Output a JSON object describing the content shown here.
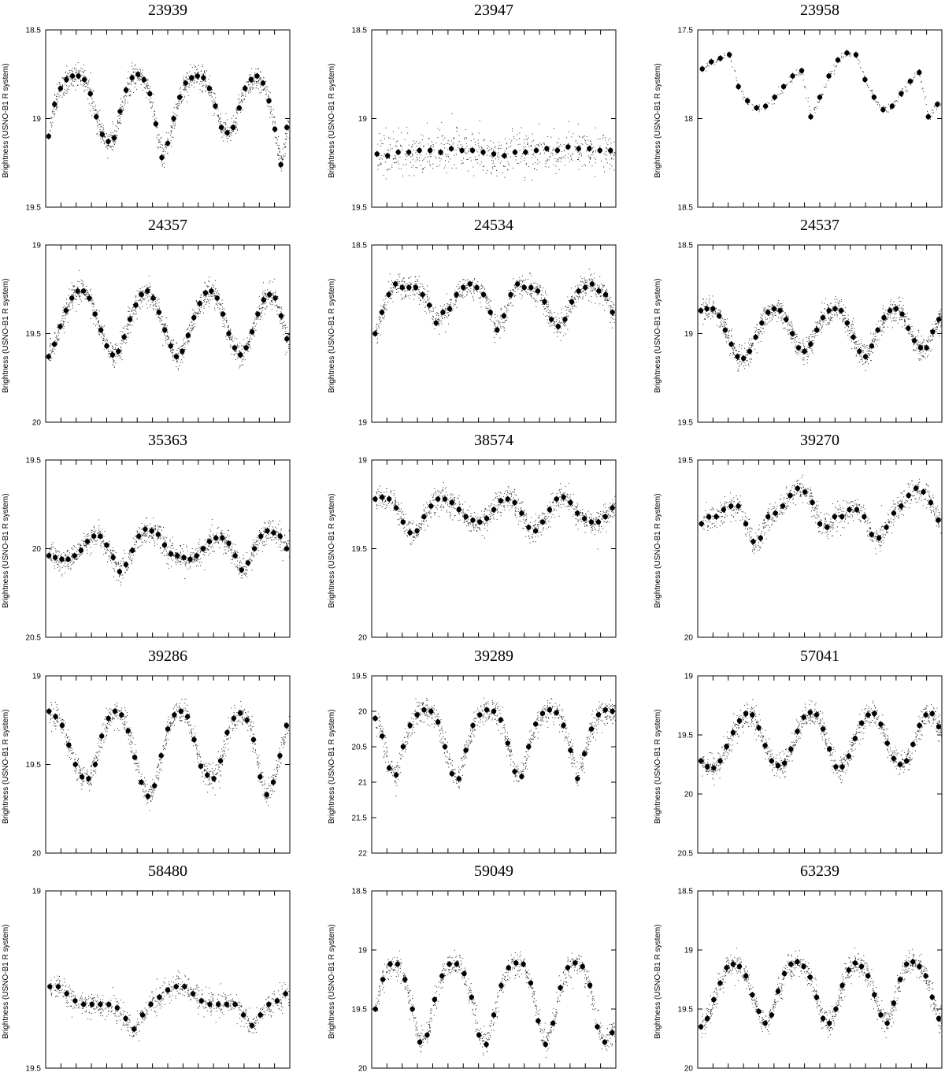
{
  "chart_data": [
    {
      "type": "scatter",
      "title": "23939",
      "ylabel": "Brightness (USNO-B1 R system)",
      "ylim": [
        18.5,
        19.5
      ],
      "yticks": [
        18.5,
        19,
        19.5
      ],
      "reversed_y": true,
      "waveform": "eclipsing",
      "phase_offset": 0.1,
      "cycles": 2,
      "series": [
        {
          "name": "",
          "values": [
            19.1,
            18.92,
            18.83,
            18.78,
            18.76,
            18.76,
            18.78,
            18.86,
            18.99,
            19.09,
            19.13,
            19.11,
            18.96,
            18.84,
            18.77,
            18.75,
            18.78,
            18.86,
            19.03,
            19.22,
            19.14,
            19.0,
            18.88,
            18.8,
            18.77,
            18.76,
            18.77,
            18.83,
            18.93,
            19.05,
            19.08,
            19.05,
            18.94,
            18.83,
            18.78,
            18.76,
            18.8,
            18.9,
            19.06,
            19.26,
            19.05
          ]
        }
      ]
    },
    {
      "type": "scatter",
      "title": "23947",
      "ylabel": "Brightness (USNO-B1 R system)",
      "ylim": [
        18.5,
        19.5
      ],
      "yticks": [
        18.5,
        19,
        19.5
      ],
      "reversed_y": true,
      "waveform": "flat",
      "cycles": 1,
      "series": [
        {
          "name": "",
          "values": [
            19.2,
            19.21,
            19.19,
            19.19,
            19.18,
            19.18,
            19.19,
            19.17,
            19.18,
            19.18,
            19.19,
            19.2,
            19.21,
            19.19,
            19.19,
            19.18,
            19.17,
            19.18,
            19.16,
            19.17,
            19.17,
            19.18,
            19.18
          ]
        }
      ]
    },
    {
      "type": "scatter",
      "title": "23958",
      "ylabel": "Brightness (USNO-B1 R system)",
      "ylim": [
        17.5,
        18.5
      ],
      "yticks": [
        17.5,
        18,
        18.5
      ],
      "reversed_y": true,
      "waveform": "sawtooth-gapped",
      "cycles": 2.5,
      "series": [
        {
          "name": "",
          "values": [
            17.72,
            17.68,
            17.66,
            17.64,
            17.82,
            17.9,
            17.94,
            17.93,
            17.88,
            17.82,
            17.76,
            17.73,
            17.99,
            17.88,
            17.76,
            17.67,
            17.63,
            17.64,
            17.78,
            17.88,
            17.95,
            17.93,
            17.86,
            17.79,
            17.74,
            17.99,
            17.92
          ]
        }
      ]
    },
    {
      "type": "scatter",
      "title": "24357",
      "ylabel": "Brightness (USNO-B1 R system)",
      "ylim": [
        19,
        20
      ],
      "yticks": [
        19,
        19.5,
        20
      ],
      "reversed_y": true,
      "waveform": "sinusoidal",
      "cycles": 4,
      "series": [
        {
          "name": "",
          "values": [
            19.63,
            19.56,
            19.46,
            19.37,
            19.3,
            19.26,
            19.26,
            19.3,
            19.39,
            19.48,
            19.57,
            19.62,
            19.6,
            19.52,
            19.42,
            19.34,
            19.28,
            19.26,
            19.3,
            19.38,
            19.48,
            19.57,
            19.63,
            19.6,
            19.51,
            19.41,
            19.33,
            19.27,
            19.26,
            19.3,
            19.39,
            19.5,
            19.58,
            19.62,
            19.58,
            19.49,
            19.39,
            19.31,
            19.28,
            19.3,
            19.4,
            19.53
          ]
        }
      ]
    },
    {
      "type": "scatter",
      "title": "24534",
      "ylabel": "Brightness (USNO-B1 R system)",
      "ylim": [
        18.5,
        19
      ],
      "yticks": [
        18.5,
        19
      ],
      "reversed_y": true,
      "waveform": "eclipsing",
      "cycles": 2,
      "series": [
        {
          "name": "",
          "values": [
            18.75,
            18.69,
            18.64,
            18.61,
            18.62,
            18.62,
            18.62,
            18.64,
            18.67,
            18.72,
            18.69,
            18.68,
            18.64,
            18.62,
            18.61,
            18.62,
            18.64,
            18.69,
            18.74,
            18.7,
            18.64,
            18.61,
            18.62,
            18.62,
            18.63,
            18.66,
            18.71,
            18.73,
            18.71,
            18.66,
            18.63,
            18.62,
            18.61,
            18.63,
            18.64,
            18.69
          ]
        }
      ]
    },
    {
      "type": "scatter",
      "title": "24537",
      "ylabel": "Brightness (USNO-B1 R system)",
      "ylim": [
        18.5,
        19.5
      ],
      "yticks": [
        18.5,
        19,
        19.5
      ],
      "reversed_y": true,
      "waveform": "sinusoidal",
      "cycles": 4,
      "series": [
        {
          "name": "",
          "values": [
            18.87,
            18.86,
            18.86,
            18.9,
            18.98,
            19.06,
            19.13,
            19.14,
            19.1,
            19.02,
            18.94,
            18.88,
            18.86,
            18.87,
            18.92,
            19.0,
            19.08,
            19.1,
            19.06,
            18.98,
            18.91,
            18.87,
            18.86,
            18.87,
            18.94,
            19.02,
            19.1,
            19.13,
            19.07,
            18.98,
            18.91,
            18.87,
            18.86,
            18.89,
            18.97,
            19.04,
            19.08,
            19.08,
            18.99,
            18.92
          ]
        }
      ]
    },
    {
      "type": "scatter",
      "title": "35363",
      "ylabel": "Brightness (USNO-B1 R system)",
      "ylim": [
        19.5,
        20.5
      ],
      "yticks": [
        19.5,
        20,
        20.5
      ],
      "reversed_y": true,
      "waveform": "eclipsing",
      "cycles": 2,
      "series": [
        {
          "name": "",
          "values": [
            20.04,
            20.05,
            20.06,
            20.06,
            20.04,
            20.01,
            19.96,
            19.93,
            19.93,
            19.98,
            20.05,
            20.13,
            20.09,
            20.01,
            19.93,
            19.89,
            19.9,
            19.92,
            19.98,
            20.03,
            20.04,
            20.05,
            20.06,
            20.04,
            20.0,
            19.96,
            19.94,
            19.94,
            19.97,
            20.04,
            20.12,
            20.08,
            20.0,
            19.93,
            19.9,
            19.91,
            19.93,
            20.0
          ]
        }
      ]
    },
    {
      "type": "scatter",
      "title": "38574",
      "ylabel": "Brightness (USNO-B1 R system)",
      "ylim": [
        19,
        20
      ],
      "yticks": [
        19,
        19.5,
        20
      ],
      "reversed_y": true,
      "waveform": "eclipsing",
      "cycles": 2,
      "series": [
        {
          "name": "",
          "values": [
            19.22,
            19.21,
            19.22,
            19.27,
            19.35,
            19.41,
            19.4,
            19.32,
            19.26,
            19.22,
            19.22,
            19.24,
            19.28,
            19.32,
            19.34,
            19.35,
            19.33,
            19.28,
            19.23,
            19.22,
            19.24,
            19.3,
            19.38,
            19.4,
            19.35,
            19.28,
            19.22,
            19.21,
            19.24,
            19.3,
            19.33,
            19.35,
            19.35,
            19.32,
            19.27
          ]
        }
      ]
    },
    {
      "type": "scatter",
      "title": "39270",
      "ylabel": "Brightness (USNO-B1 R system)",
      "ylim": [
        19.5,
        20
      ],
      "yticks": [
        19.5,
        20
      ],
      "reversed_y": true,
      "waveform": "eclipsing",
      "cycles": 2,
      "series": [
        {
          "name": "",
          "values": [
            19.68,
            19.66,
            19.66,
            19.64,
            19.63,
            19.63,
            19.68,
            19.73,
            19.72,
            19.66,
            19.65,
            19.63,
            19.6,
            19.58,
            19.59,
            19.62,
            19.68,
            19.69,
            19.66,
            19.66,
            19.64,
            19.64,
            19.66,
            19.71,
            19.72,
            19.69,
            19.65,
            19.63,
            19.6,
            19.58,
            19.59,
            19.62,
            19.67
          ]
        }
      ]
    },
    {
      "type": "scatter",
      "title": "39286",
      "ylabel": "Brightness (USNO-B1 R system)",
      "ylim": [
        19,
        20
      ],
      "yticks": [
        19,
        19.5,
        20
      ],
      "reversed_y": true,
      "waveform": "eclipsing",
      "cycles": 2,
      "series": [
        {
          "name": "",
          "values": [
            19.2,
            19.23,
            19.28,
            19.39,
            19.5,
            19.57,
            19.58,
            19.5,
            19.34,
            19.24,
            19.2,
            19.22,
            19.31,
            19.46,
            19.6,
            19.68,
            19.62,
            19.45,
            19.3,
            19.22,
            19.2,
            19.23,
            19.36,
            19.51,
            19.56,
            19.58,
            19.48,
            19.32,
            19.24,
            19.21,
            19.25,
            19.36,
            19.57,
            19.67,
            19.6,
            19.45,
            19.28
          ]
        }
      ]
    },
    {
      "type": "scatter",
      "title": "39289",
      "ylabel": "Brightness (USNO-B1 R system)",
      "ylim": [
        19.5,
        22
      ],
      "yticks": [
        19.5,
        20,
        20.5,
        21,
        21.5,
        22
      ],
      "reversed_y": true,
      "waveform": "sinusoidal",
      "cycles": 4,
      "series": [
        {
          "name": "",
          "values": [
            20.1,
            20.35,
            20.8,
            20.9,
            20.5,
            20.2,
            20.05,
            19.98,
            20.0,
            20.15,
            20.5,
            20.88,
            20.95,
            20.55,
            20.2,
            20.05,
            19.98,
            20.0,
            20.12,
            20.45,
            20.85,
            20.92,
            20.5,
            20.18,
            20.03,
            19.98,
            20.02,
            20.2,
            20.55,
            20.95,
            20.6,
            20.25,
            20.05,
            19.98,
            20.0
          ]
        }
      ]
    },
    {
      "type": "scatter",
      "title": "57041",
      "ylabel": "Brightness (USNO-B1 R system)",
      "ylim": [
        19,
        20.5
      ],
      "yticks": [
        19,
        19.5,
        20,
        20.5
      ],
      "reversed_y": true,
      "waveform": "sinusoidal",
      "cycles": 4,
      "series": [
        {
          "name": "",
          "values": [
            19.72,
            19.77,
            19.78,
            19.72,
            19.6,
            19.48,
            19.38,
            19.32,
            19.33,
            19.44,
            19.59,
            19.72,
            19.76,
            19.74,
            19.62,
            19.47,
            19.35,
            19.31,
            19.33,
            19.45,
            19.62,
            19.77,
            19.77,
            19.68,
            19.53,
            19.4,
            19.33,
            19.32,
            19.41,
            19.57,
            19.7,
            19.75,
            19.72,
            19.58,
            19.42,
            19.33,
            19.32,
            19.43
          ]
        }
      ]
    },
    {
      "type": "scatter",
      "title": "58480",
      "ylabel": "Brightness (USNO-B1 R system)",
      "ylim": [
        19,
        19.5
      ],
      "yticks": [
        19,
        19.5
      ],
      "reversed_y": true,
      "waveform": "eclipsing",
      "cycles": 2,
      "series": [
        {
          "name": "",
          "values": [
            19.27,
            19.27,
            19.29,
            19.31,
            19.32,
            19.32,
            19.32,
            19.32,
            19.33,
            19.36,
            19.39,
            19.35,
            19.32,
            19.3,
            19.28,
            19.27,
            19.27,
            19.29,
            19.31,
            19.32,
            19.32,
            19.32,
            19.32,
            19.35,
            19.38,
            19.35,
            19.32,
            19.31,
            19.29
          ]
        }
      ]
    },
    {
      "type": "scatter",
      "title": "59049",
      "ylabel": "Brightness (USNO-B1 R system)",
      "ylim": [
        18.5,
        20
      ],
      "yticks": [
        18.5,
        19,
        19.5,
        20
      ],
      "reversed_y": true,
      "waveform": "sinusoidal",
      "cycles": 4,
      "series": [
        {
          "name": "",
          "values": [
            19.5,
            19.25,
            19.12,
            19.12,
            19.25,
            19.5,
            19.78,
            19.72,
            19.42,
            19.22,
            19.12,
            19.12,
            19.2,
            19.4,
            19.72,
            19.8,
            19.55,
            19.3,
            19.15,
            19.11,
            19.12,
            19.28,
            19.6,
            19.8,
            19.62,
            19.32,
            19.15,
            19.11,
            19.14,
            19.3,
            19.65,
            19.78,
            19.7
          ]
        }
      ]
    },
    {
      "type": "scatter",
      "title": "63239",
      "ylabel": "Brightness (USNO-B1 R system)",
      "ylim": [
        18.5,
        20
      ],
      "yticks": [
        18.5,
        19,
        19.5,
        20
      ],
      "reversed_y": true,
      "waveform": "eclipsing",
      "cycles": 2,
      "series": [
        {
          "name": "",
          "values": [
            19.65,
            19.58,
            19.42,
            19.28,
            19.15,
            19.12,
            19.14,
            19.22,
            19.38,
            19.52,
            19.62,
            19.55,
            19.35,
            19.2,
            19.12,
            19.1,
            19.14,
            19.23,
            19.4,
            19.58,
            19.62,
            19.5,
            19.3,
            19.17,
            19.11,
            19.14,
            19.22,
            19.38,
            19.55,
            19.62,
            19.45,
            19.25,
            19.12,
            19.1,
            19.14,
            19.22,
            19.4,
            19.58
          ]
        }
      ]
    }
  ]
}
